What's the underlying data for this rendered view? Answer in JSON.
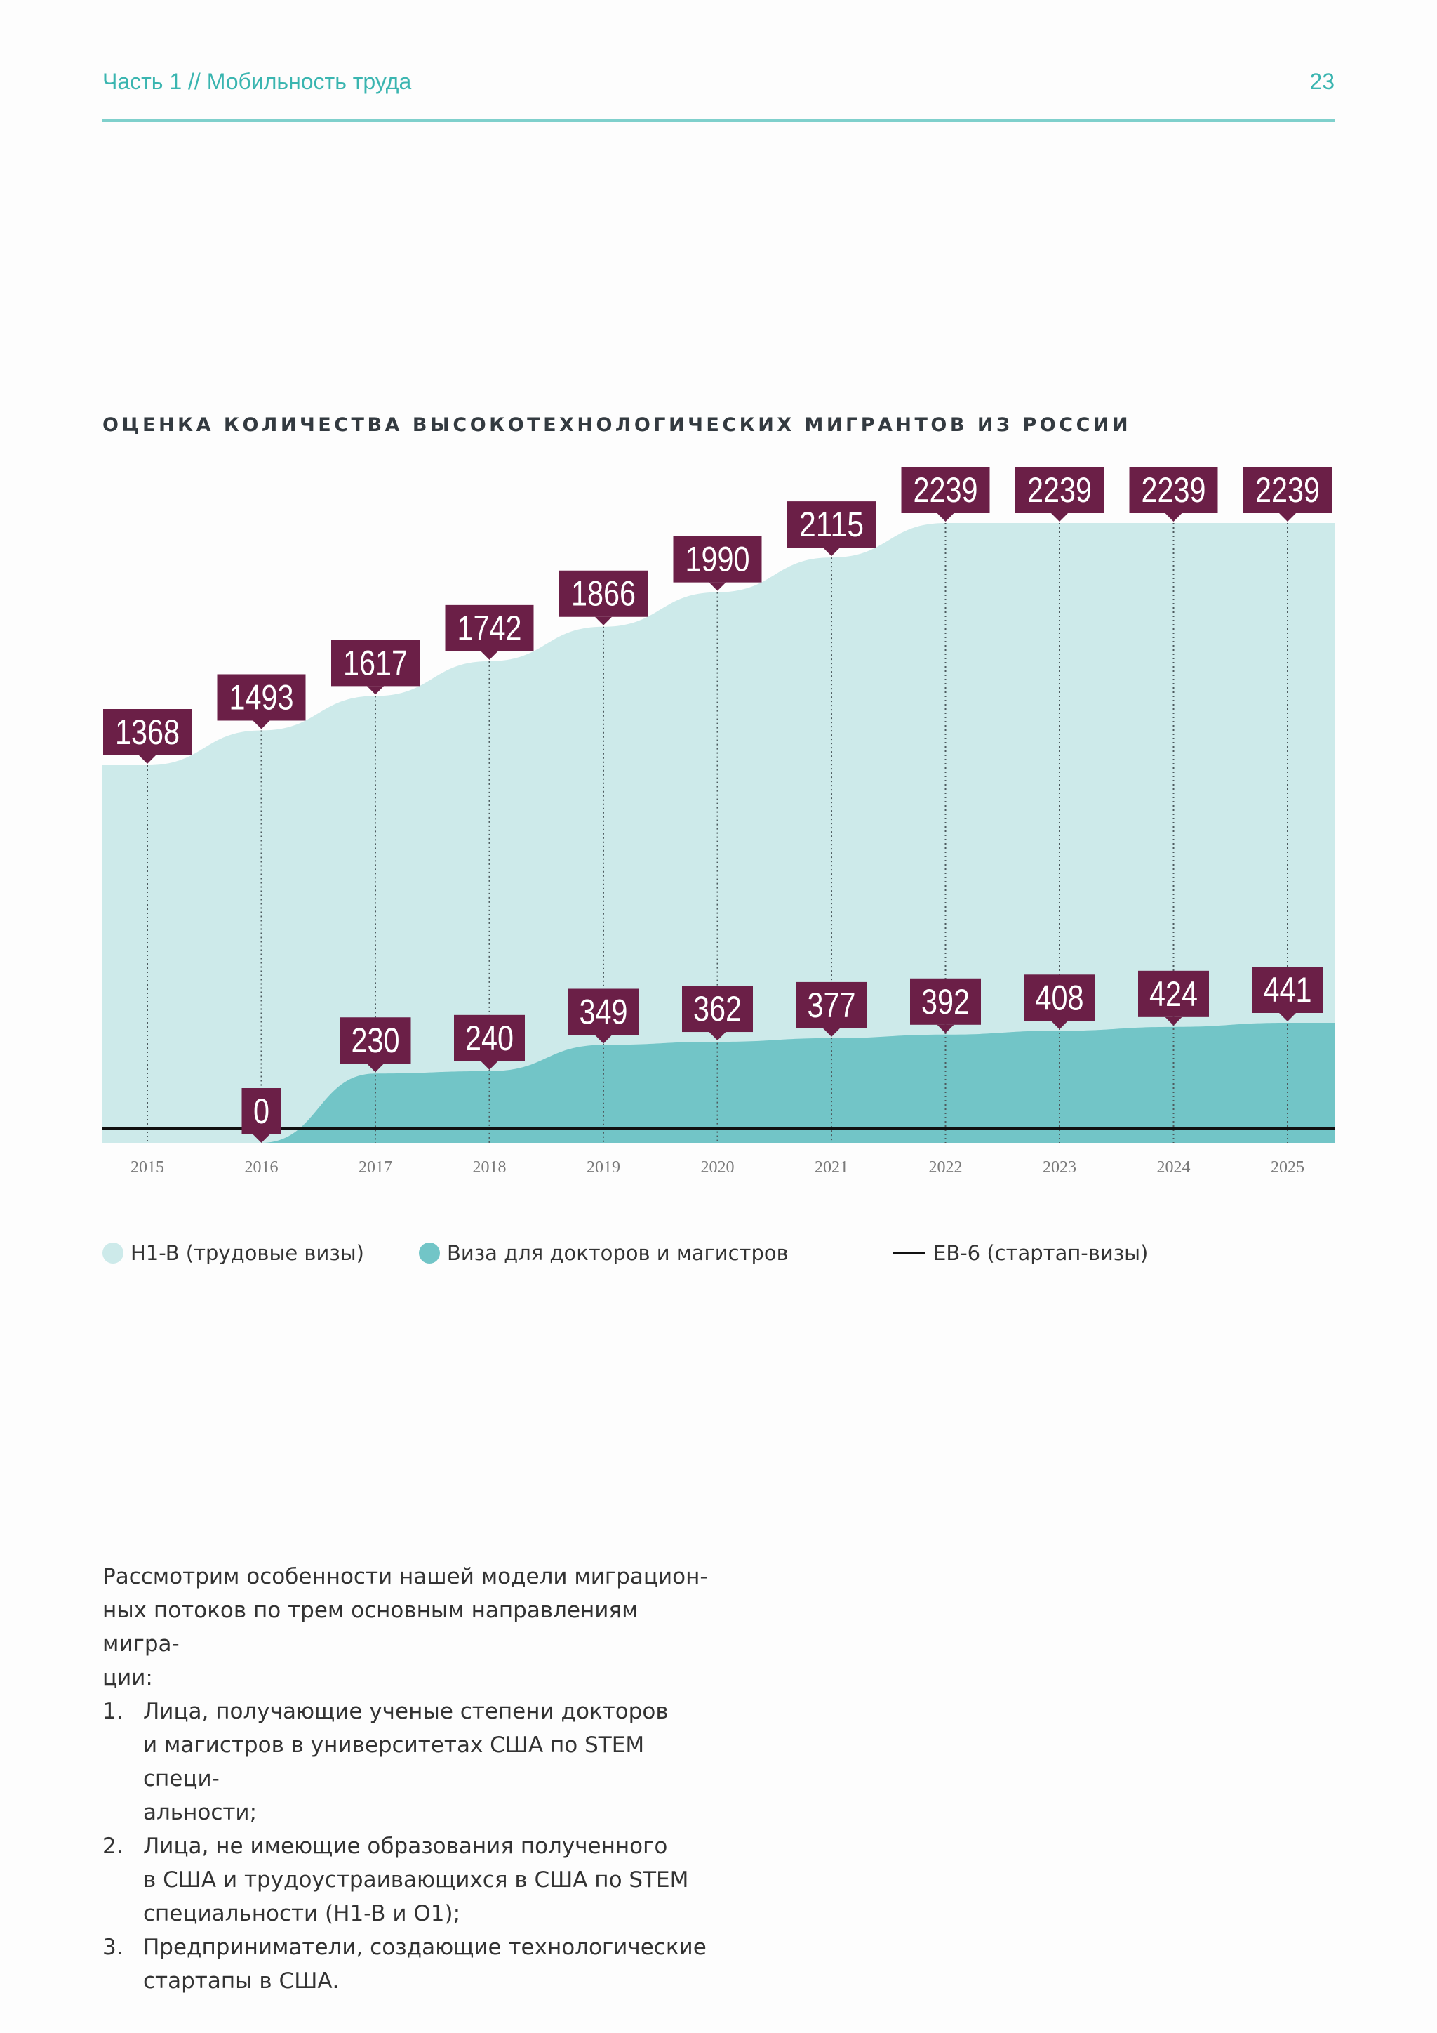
{
  "header": {
    "section": "Часть 1 // Мобильность труда",
    "page_number": "23"
  },
  "chart_title": "ОЦЕНКА КОЛИЧЕСТВА ВЫСОКОТЕХНОЛОГИЧЕСКИХ МИГРАНТОВ ИЗ РОССИИ",
  "colors": {
    "accent": "#3ab5b0",
    "h1b_area": "#cdeaea",
    "doctors_area": "#72c5c7",
    "label_bg": "#6b1f47",
    "eb6_line": "#111111"
  },
  "chart_data": {
    "type": "area",
    "title": "ОЦЕНКА КОЛИЧЕСТВА ВЫСОКОТЕХНОЛОГИЧЕСКИХ МИГРАНТОВ ИЗ РОССИИ",
    "categories": [
      "2015",
      "2016",
      "2017",
      "2018",
      "2019",
      "2020",
      "2021",
      "2022",
      "2023",
      "2024",
      "2025"
    ],
    "series": [
      {
        "name": "H1-B (трудовые визы)",
        "values": [
          1368,
          1493,
          1617,
          1742,
          1866,
          1990,
          2115,
          2239,
          2239,
          2239,
          2239
        ]
      },
      {
        "name": "Виза для докторов и магистров",
        "values": [
          0,
          0,
          230,
          240,
          349,
          362,
          377,
          392,
          408,
          424,
          441
        ]
      },
      {
        "name": "EB-6 (стартап-визы)",
        "values": [
          0,
          0,
          0,
          0,
          0,
          0,
          0,
          0,
          0,
          0,
          0
        ]
      }
    ],
    "labels_top": [
      "1368",
      "1493",
      "1617",
      "1742",
      "1866",
      "1990",
      "2115",
      "2239",
      "2239",
      "2239",
      "2239"
    ],
    "labels_bottom": [
      "",
      "0",
      "230",
      "240",
      "349",
      "362",
      "377",
      "392",
      "408",
      "424",
      "441"
    ],
    "legend_position": "bottom"
  },
  "legend": {
    "h1b": "H1-B (трудовые визы)",
    "doctors": "Виза для докторов и магистров",
    "eb6": "EB-6 (стартап-визы)"
  },
  "body": {
    "intro": "Рассмотрим особенности нашей модели миграцион-\nных потоков по трем основным направлениям мигра-\nции:",
    "items": [
      {
        "num": "1.",
        "text": "Лица, получающие ученые степени докторов\nи магистров в университетах США по STEM специ-\nальности;"
      },
      {
        "num": "2.",
        "text": "Лица, не имеющие образования полученного\nв США и трудоустраивающихся в США по STEM\nспециальности (H1-B и O1);"
      },
      {
        "num": "3.",
        "text": "Предприниматели, создающие технологические\nстартапы в США."
      }
    ]
  }
}
